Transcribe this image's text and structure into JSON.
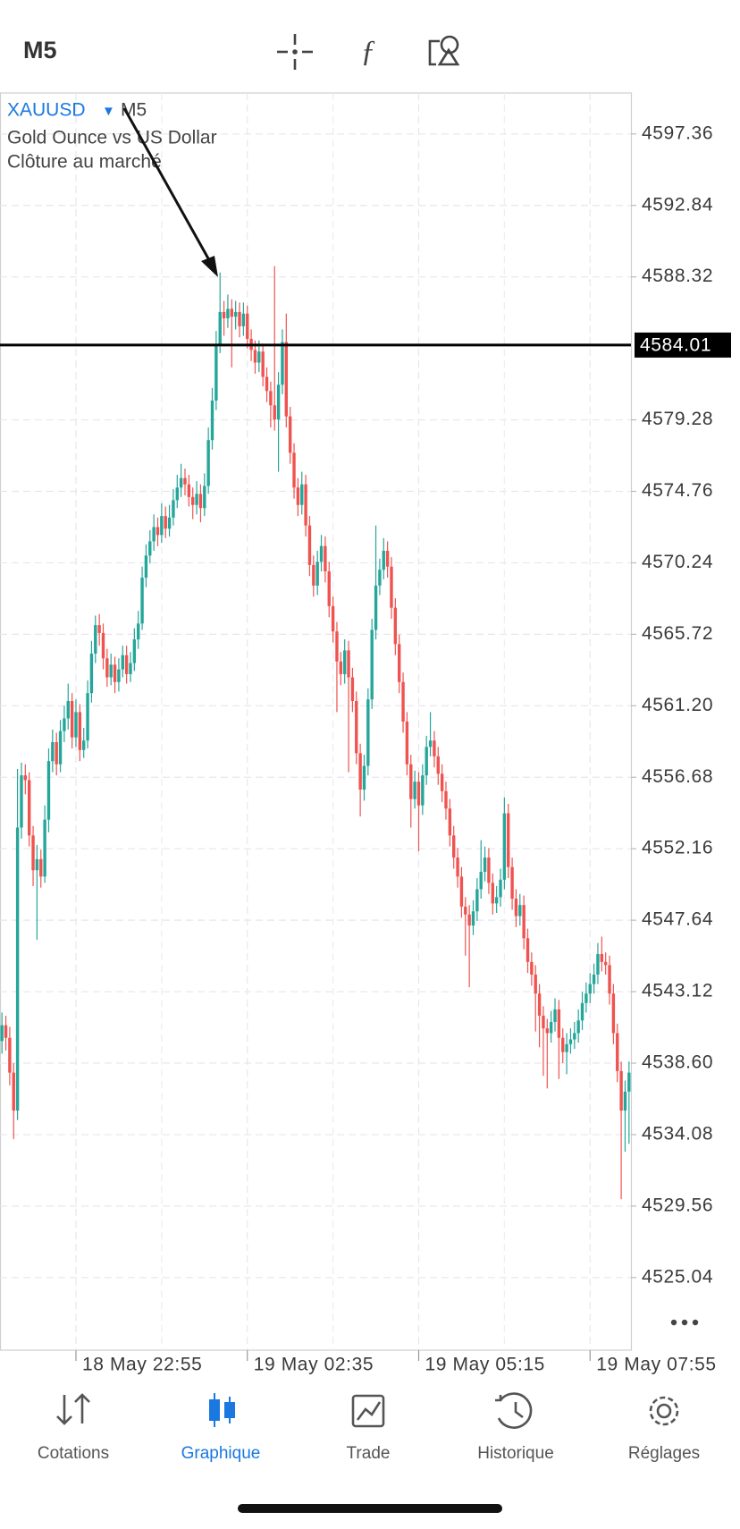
{
  "toolbar": {
    "timeframe": "M5"
  },
  "chart_data": {
    "type": "candlestick",
    "symbol": "XAUUSD",
    "timeframe": "M5",
    "description": "Gold Ounce vs US Dollar",
    "subtitle": "Clôture au marché",
    "up_color": "#26a69a",
    "down_color": "#ef5350",
    "ylim": [
      4520.45,
      4599.95
    ],
    "yticks": [
      4597.36,
      4592.84,
      4588.32,
      4579.28,
      4574.76,
      4570.24,
      4565.72,
      {
        "value": 4561.2,
        "label": "4561.20"
      },
      4556.68,
      4552.16,
      4547.64,
      4543.12,
      {
        "value": 4538.6,
        "label": "4538.60"
      },
      4534.08,
      4529.56,
      4525.04
    ],
    "grid": true,
    "price_line": 4584.01,
    "categories": [
      null,
      null,
      null,
      null,
      null,
      null,
      null,
      null,
      null,
      null,
      null,
      null,
      null,
      null,
      null,
      null,
      null,
      null,
      null,
      "18 May 22:55",
      null,
      null,
      null,
      null,
      null,
      null,
      null,
      null,
      null,
      null,
      null,
      null,
      null,
      null,
      null,
      null,
      null,
      null,
      null,
      null,
      null,
      null,
      null,
      null,
      null,
      null,
      null,
      null,
      null,
      null,
      null,
      null,
      null,
      null,
      null,
      null,
      null,
      null,
      null,
      null,
      null,
      null,
      null,
      "19 May 02:35",
      null,
      null,
      null,
      null,
      null,
      null,
      null,
      null,
      null,
      null,
      null,
      null,
      null,
      null,
      null,
      null,
      null,
      null,
      null,
      null,
      null,
      null,
      null,
      null,
      null,
      null,
      null,
      null,
      null,
      null,
      null,
      null,
      null,
      null,
      null,
      null,
      null,
      null,
      null,
      null,
      null,
      null,
      null,
      "19 May 05:15",
      null,
      null,
      null,
      null,
      null,
      null,
      null,
      null,
      null,
      null,
      null,
      null,
      null,
      null,
      null,
      null,
      null,
      null,
      null,
      null,
      null,
      null,
      null,
      null,
      null,
      null,
      null,
      null,
      null,
      null,
      null,
      null,
      null,
      null,
      null,
      null,
      null,
      null,
      null,
      null,
      null,
      null,
      null,
      "19 May 07:55",
      null,
      null,
      null,
      null,
      null,
      null,
      null,
      null,
      null,
      null
    ],
    "ohlc": [
      [
        4540.0,
        4541.8,
        4539.2,
        4541.0
      ],
      [
        4541.0,
        4541.6,
        4539.4,
        4540.2
      ],
      [
        4540.2,
        4540.9,
        4537.2,
        4538.0
      ],
      [
        4538.0,
        4538.6,
        4533.8,
        4535.6
      ],
      [
        4535.6,
        4557.2,
        4535.0,
        4553.5
      ],
      [
        4553.5,
        4557.6,
        4552.8,
        4556.8
      ],
      [
        4556.8,
        4557.5,
        4555.6,
        4556.5
      ],
      [
        4556.5,
        4557.0,
        4552.3,
        4553.0
      ],
      [
        4553.0,
        4553.6,
        4549.8,
        4550.8
      ],
      [
        4550.8,
        4552.4,
        4546.4,
        4551.5
      ],
      [
        4551.5,
        4552.1,
        4549.7,
        4550.4
      ],
      [
        4550.4,
        4554.9,
        4550.0,
        4554.0
      ],
      [
        4554.0,
        4558.5,
        4553.2,
        4557.7
      ],
      [
        4557.7,
        4559.7,
        4557.0,
        4558.9
      ],
      [
        4558.9,
        4559.5,
        4556.8,
        4557.5
      ],
      [
        4557.5,
        4560.3,
        4557.0,
        4559.6
      ],
      [
        4559.6,
        4561.2,
        4558.9,
        4560.4
      ],
      [
        4560.4,
        4562.6,
        4559.7,
        4561.5
      ],
      [
        4561.5,
        4562.0,
        4558.5,
        4559.2
      ],
      [
        4559.2,
        4561.6,
        4558.6,
        4560.8
      ],
      [
        4560.8,
        4561.3,
        4557.7,
        4558.4
      ],
      [
        4558.4,
        4559.8,
        4557.9,
        4559.0
      ],
      [
        4559.0,
        4562.8,
        4558.5,
        4562.0
      ],
      [
        4562.0,
        4565.3,
        4561.4,
        4564.5
      ],
      [
        4564.5,
        4566.9,
        4563.9,
        4566.3
      ],
      [
        4566.3,
        4567.0,
        4565.0,
        4565.8
      ],
      [
        4565.8,
        4566.4,
        4563.5,
        4564.2
      ],
      [
        4564.2,
        4564.8,
        4562.4,
        4563.0
      ],
      [
        4563.0,
        4564.5,
        4562.5,
        4563.8
      ],
      [
        4563.8,
        4564.3,
        4562.0,
        4562.7
      ],
      [
        4562.7,
        4564.2,
        4562.1,
        4563.5
      ],
      [
        4563.5,
        4565.0,
        4563.0,
        4564.4
      ],
      [
        4564.4,
        4565.0,
        4562.6,
        4563.2
      ],
      [
        4563.2,
        4564.6,
        4562.7,
        4563.9
      ],
      [
        4563.9,
        4566.1,
        4563.4,
        4565.4
      ],
      [
        4565.4,
        4567.2,
        4564.8,
        4566.4
      ],
      [
        4566.4,
        4570.0,
        4566.0,
        4569.3
      ],
      [
        4569.3,
        4571.4,
        4568.7,
        4570.7
      ],
      [
        4570.7,
        4572.3,
        4570.2,
        4571.6
      ],
      [
        4571.6,
        4573.3,
        4571.0,
        4572.5
      ],
      [
        4572.5,
        4573.1,
        4571.3,
        4572.0
      ],
      [
        4572.0,
        4574.0,
        4571.5,
        4573.2
      ],
      [
        4573.2,
        4573.8,
        4571.8,
        4572.4
      ],
      [
        4572.4,
        4573.9,
        4571.9,
        4573.1
      ],
      [
        4573.1,
        4574.9,
        4572.6,
        4574.2
      ],
      [
        4574.2,
        4575.8,
        4573.7,
        4575.0
      ],
      [
        4575.0,
        4576.5,
        4574.4,
        4575.6
      ],
      [
        4575.6,
        4576.2,
        4574.5,
        4575.2
      ],
      [
        4575.2,
        4575.8,
        4573.8,
        4574.4
      ],
      [
        4574.4,
        4575.0,
        4573.0,
        4573.9
      ],
      [
        4573.9,
        4575.4,
        4573.3,
        4574.6
      ],
      [
        4574.6,
        4575.2,
        4572.8,
        4573.7
      ],
      [
        4573.7,
        4575.9,
        4573.2,
        4575.1
      ],
      [
        4575.1,
        4578.8,
        4574.6,
        4578.0
      ],
      [
        4578.0,
        4581.3,
        4577.4,
        4580.5
      ],
      [
        4580.5,
        4584.9,
        4579.9,
        4584.0
      ],
      [
        4584.0,
        4588.6,
        4583.5,
        4586.1
      ],
      [
        4586.1,
        4586.8,
        4584.6,
        4585.7
      ],
      [
        4585.7,
        4587.2,
        4585.1,
        4586.3
      ],
      [
        4586.3,
        4586.9,
        4582.6,
        4585.8
      ],
      [
        4585.8,
        4586.8,
        4585.0,
        4586.1
      ],
      [
        4586.1,
        4586.7,
        4584.5,
        4585.2
      ],
      [
        4585.2,
        4586.7,
        4584.6,
        4586.0
      ],
      [
        4586.0,
        4586.5,
        4583.8,
        4584.4
      ],
      [
        4584.4,
        4585.0,
        4583.0,
        4583.7
      ],
      [
        4583.7,
        4584.3,
        4582.2,
        4582.9
      ],
      [
        4582.9,
        4584.3,
        4582.3,
        4583.6
      ],
      [
        4583.6,
        4584.1,
        4581.4,
        4582.0
      ],
      [
        4582.0,
        4582.6,
        4580.4,
        4581.1
      ],
      [
        4581.1,
        4581.7,
        4578.8,
        4580.2
      ],
      [
        4580.2,
        4589.0,
        4578.6,
        4579.3
      ],
      [
        4579.3,
        4582.3,
        4576.0,
        4581.5
      ],
      [
        4581.5,
        4585.0,
        4580.9,
        4584.2
      ],
      [
        4584.2,
        4586.0,
        4578.8,
        4579.5
      ],
      [
        4579.5,
        4580.1,
        4576.5,
        4577.2
      ],
      [
        4577.2,
        4577.8,
        4574.3,
        4575.0
      ],
      [
        4575.0,
        4575.6,
        4573.2,
        4573.9
      ],
      [
        4573.9,
        4576.0,
        4573.3,
        4575.2
      ],
      [
        4575.2,
        4575.8,
        4571.9,
        4572.6
      ],
      [
        4572.6,
        4573.2,
        4569.4,
        4570.1
      ],
      [
        4570.1,
        4570.7,
        4568.1,
        4568.8
      ],
      [
        4568.8,
        4571.0,
        4568.2,
        4570.3
      ],
      [
        4570.3,
        4572.0,
        4569.7,
        4571.3
      ],
      [
        4571.3,
        4571.9,
        4569.0,
        4569.7
      ],
      [
        4569.7,
        4570.3,
        4566.8,
        4567.5
      ],
      [
        4567.5,
        4568.1,
        4565.2,
        4565.9
      ],
      [
        4565.9,
        4566.5,
        4560.8,
        4564.0
      ],
      [
        4564.0,
        4564.6,
        4562.5,
        4563.2
      ],
      [
        4563.2,
        4565.4,
        4562.6,
        4564.7
      ],
      [
        4564.7,
        4565.3,
        4557.0,
        4563.0
      ],
      [
        4563.0,
        4563.6,
        4560.8,
        4561.5
      ],
      [
        4561.5,
        4562.1,
        4557.5,
        4558.2
      ],
      [
        4558.2,
        4558.8,
        4554.2,
        4555.9
      ],
      [
        4555.9,
        4558.1,
        4555.2,
        4557.4
      ],
      [
        4557.4,
        4562.3,
        4556.8,
        4561.6
      ],
      [
        4561.6,
        4566.7,
        4561.0,
        4566.0
      ],
      [
        4566.0,
        4572.6,
        4565.4,
        4568.8
      ],
      [
        4568.8,
        4570.5,
        4568.2,
        4569.8
      ],
      [
        4569.8,
        4571.8,
        4569.2,
        4571.0
      ],
      [
        4571.0,
        4571.6,
        4569.3,
        4570.0
      ],
      [
        4570.0,
        4570.6,
        4566.7,
        4567.4
      ],
      [
        4567.4,
        4568.0,
        4564.4,
        4565.1
      ],
      [
        4565.1,
        4565.7,
        4562.0,
        4562.7
      ],
      [
        4562.7,
        4563.3,
        4559.5,
        4560.2
      ],
      [
        4560.2,
        4560.8,
        4556.8,
        4557.5
      ],
      [
        4557.5,
        4558.1,
        4553.5,
        4555.3
      ],
      [
        4555.3,
        4557.1,
        4554.7,
        4556.4
      ],
      [
        4556.4,
        4557.0,
        4552.0,
        4554.9
      ],
      [
        4554.9,
        4557.5,
        4554.3,
        4556.8
      ],
      [
        4556.8,
        4559.3,
        4556.2,
        4558.6
      ],
      [
        4558.6,
        4560.8,
        4558.0,
        4559.0
      ],
      [
        4559.0,
        4559.6,
        4557.3,
        4558.0
      ],
      [
        4558.0,
        4558.6,
        4556.2,
        4556.9
      ],
      [
        4556.9,
        4557.5,
        4555.1,
        4555.8
      ],
      [
        4555.8,
        4556.4,
        4554.0,
        4554.7
      ],
      [
        4554.7,
        4555.3,
        4552.3,
        4553.0
      ],
      [
        4553.0,
        4553.6,
        4550.9,
        4551.6
      ],
      [
        4551.6,
        4552.2,
        4549.7,
        4550.4
      ],
      [
        4550.4,
        4551.0,
        4547.8,
        4548.5
      ],
      [
        4548.5,
        4549.1,
        4545.4,
        4548.0
      ],
      [
        4548.0,
        4548.6,
        4543.4,
        4547.3
      ],
      [
        4547.3,
        4548.9,
        4546.7,
        4548.2
      ],
      [
        4548.2,
        4550.3,
        4547.6,
        4549.6
      ],
      [
        4549.6,
        4552.7,
        4549.0,
        4550.7
      ],
      [
        4550.7,
        4552.3,
        4550.1,
        4551.6
      ],
      [
        4551.6,
        4552.2,
        4549.3,
        4550.0
      ],
      [
        4550.0,
        4550.6,
        4548.0,
        4548.7
      ],
      [
        4548.7,
        4549.8,
        4548.1,
        4549.1
      ],
      [
        4549.1,
        4550.9,
        4548.5,
        4550.2
      ],
      [
        4550.2,
        4555.4,
        4549.6,
        4554.4
      ],
      [
        4554.4,
        4555.0,
        4550.3,
        4551.0
      ],
      [
        4551.0,
        4551.6,
        4548.3,
        4549.0
      ],
      [
        4549.0,
        4549.6,
        4547.2,
        4547.9
      ],
      [
        4547.9,
        4549.3,
        4547.3,
        4548.6
      ],
      [
        4548.6,
        4549.2,
        4545.8,
        4546.5
      ],
      [
        4546.5,
        4547.1,
        4544.3,
        4545.0
      ],
      [
        4545.0,
        4545.6,
        4543.5,
        4544.2
      ],
      [
        4544.2,
        4544.8,
        4540.6,
        4543.0
      ],
      [
        4543.0,
        4543.6,
        4539.6,
        4541.6
      ],
      [
        4541.6,
        4542.2,
        4537.8,
        4540.8
      ],
      [
        4540.8,
        4541.4,
        4537.0,
        4540.5
      ],
      [
        4540.5,
        4541.9,
        4539.9,
        4541.2
      ],
      [
        4541.2,
        4542.7,
        4540.6,
        4542.0
      ],
      [
        4542.0,
        4542.6,
        4537.6,
        4540.2
      ],
      [
        4540.2,
        4540.8,
        4538.6,
        4539.3
      ],
      [
        4539.3,
        4540.5,
        4537.9,
        4539.8
      ],
      [
        4539.8,
        4540.8,
        4539.2,
        4540.1
      ],
      [
        4540.1,
        4541.2,
        4539.5,
        4540.5
      ],
      [
        4540.5,
        4542.0,
        4539.9,
        4541.3
      ],
      [
        4541.3,
        4543.1,
        4540.7,
        4542.4
      ],
      [
        4542.4,
        4543.7,
        4541.8,
        4543.0
      ],
      [
        4543.0,
        4544.3,
        4542.4,
        4543.6
      ],
      [
        4543.6,
        4544.9,
        4543.0,
        4544.2
      ],
      [
        4544.2,
        4546.2,
        4543.6,
        4545.5
      ],
      [
        4545.5,
        4546.6,
        4544.4,
        4545.0
      ],
      [
        4545.0,
        4545.6,
        4544.2,
        4544.8
      ],
      [
        4544.8,
        4545.4,
        4542.3,
        4543.0
      ],
      [
        4543.0,
        4543.6,
        4539.8,
        4540.5
      ],
      [
        4540.5,
        4541.1,
        4537.4,
        4538.1
      ],
      [
        4538.1,
        4538.7,
        4530.0,
        4535.6
      ],
      [
        4535.6,
        4537.5,
        4533.0,
        4536.8
      ],
      [
        4536.8,
        4538.7,
        4533.5,
        4538.0
      ]
    ]
  },
  "tabs": [
    "Cotations",
    "Graphique",
    "Trade",
    "Historique",
    "Réglages"
  ],
  "active_tab": 1
}
